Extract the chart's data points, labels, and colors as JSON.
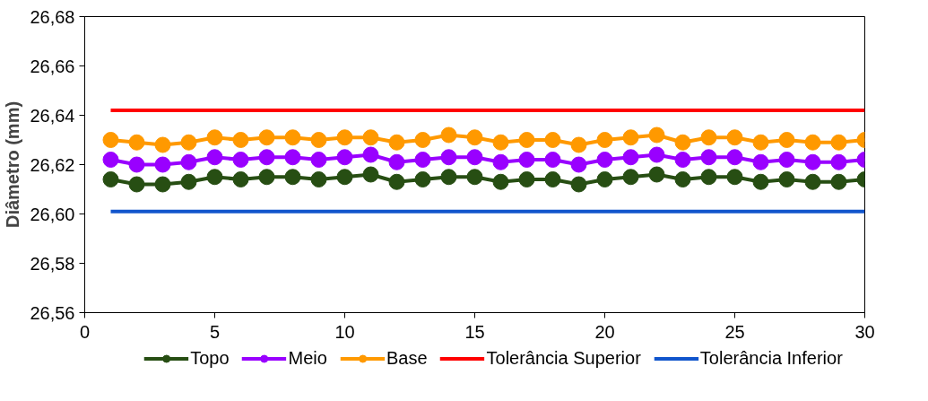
{
  "chart_data": {
    "type": "line",
    "ylabel": "Diâmetro (mm)",
    "x": [
      1,
      2,
      3,
      4,
      5,
      6,
      7,
      8,
      9,
      10,
      11,
      12,
      13,
      14,
      15,
      16,
      17,
      18,
      19,
      20,
      21,
      22,
      23,
      24,
      25,
      26,
      27,
      28,
      29,
      30
    ],
    "series": [
      {
        "name": "Topo",
        "color": "#274e13",
        "marker": "circle",
        "values": [
          26.614,
          26.612,
          26.612,
          26.613,
          26.615,
          26.614,
          26.615,
          26.615,
          26.614,
          26.615,
          26.616,
          26.613,
          26.614,
          26.615,
          26.615,
          26.613,
          26.614,
          26.614,
          26.612,
          26.614,
          26.615,
          26.616,
          26.614,
          26.615,
          26.615,
          26.613,
          26.614,
          26.613,
          26.613,
          26.614
        ]
      },
      {
        "name": "Meio",
        "color": "#9900ff",
        "marker": "circle",
        "values": [
          26.622,
          26.62,
          26.62,
          26.621,
          26.623,
          26.622,
          26.623,
          26.623,
          26.622,
          26.623,
          26.624,
          26.621,
          26.622,
          26.623,
          26.623,
          26.621,
          26.622,
          26.622,
          26.62,
          26.622,
          26.623,
          26.624,
          26.622,
          26.623,
          26.623,
          26.621,
          26.622,
          26.621,
          26.621,
          26.622
        ]
      },
      {
        "name": "Base",
        "color": "#ff9900",
        "marker": "circle",
        "values": [
          26.63,
          26.629,
          26.628,
          26.629,
          26.631,
          26.63,
          26.631,
          26.631,
          26.63,
          26.631,
          26.631,
          26.629,
          26.63,
          26.632,
          26.631,
          26.629,
          26.63,
          26.63,
          26.628,
          26.63,
          26.631,
          26.632,
          26.629,
          26.631,
          26.631,
          26.629,
          26.63,
          26.629,
          26.629,
          26.63
        ]
      },
      {
        "name": "Tolerância Superior",
        "color": "#ff0000",
        "marker": "none",
        "values": [
          26.642,
          26.642,
          26.642,
          26.642,
          26.642,
          26.642,
          26.642,
          26.642,
          26.642,
          26.642,
          26.642,
          26.642,
          26.642,
          26.642,
          26.642,
          26.642,
          26.642,
          26.642,
          26.642,
          26.642,
          26.642,
          26.642,
          26.642,
          26.642,
          26.642,
          26.642,
          26.642,
          26.642,
          26.642,
          26.642
        ]
      },
      {
        "name": "Tolerância Inferior",
        "color": "#1155cc",
        "marker": "none",
        "values": [
          26.601,
          26.601,
          26.601,
          26.601,
          26.601,
          26.601,
          26.601,
          26.601,
          26.601,
          26.601,
          26.601,
          26.601,
          26.601,
          26.601,
          26.601,
          26.601,
          26.601,
          26.601,
          26.601,
          26.601,
          26.601,
          26.601,
          26.601,
          26.601,
          26.601,
          26.601,
          26.601,
          26.601,
          26.601,
          26.601
        ]
      }
    ],
    "xlim": [
      0,
      30
    ],
    "xticks": [
      0,
      5,
      10,
      15,
      20,
      25,
      30
    ],
    "ylim": [
      26.56,
      26.68
    ],
    "yticks": [
      {
        "value": 26.56,
        "label": "26,56"
      },
      {
        "value": 26.58,
        "label": "26,58"
      },
      {
        "value": 26.6,
        "label": "26,60"
      },
      {
        "value": 26.62,
        "label": "26,62"
      },
      {
        "value": 26.64,
        "label": "26,64"
      },
      {
        "value": 26.66,
        "label": "26,66"
      },
      {
        "value": 26.68,
        "label": "26,68"
      }
    ],
    "grid": false,
    "legend": "bottom",
    "line_style": "solid"
  }
}
